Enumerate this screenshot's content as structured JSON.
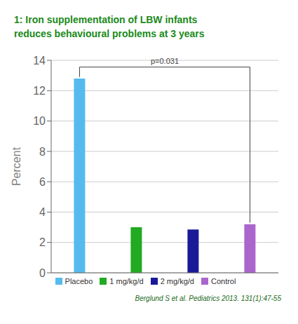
{
  "chart_data": {
    "type": "bar",
    "title": "1:  Iron supplementation of LBW infants",
    "subtitle": "reduces behavioural problems at 3 years",
    "categories": [
      "Placebo",
      "1 mg/kg/d",
      "2 mg/kg/d",
      "Control"
    ],
    "values": [
      12.8,
      3.0,
      2.85,
      3.2
    ],
    "colors": [
      "#55bbee",
      "#22aa22",
      "#1a1a99",
      "#aa66cc"
    ],
    "ylabel": "Percent",
    "ylim": [
      0,
      14
    ],
    "yticks": [
      0,
      2,
      4,
      6,
      8,
      10,
      12,
      14
    ],
    "grid": true,
    "legend": "bottom",
    "tick_labels": "y",
    "annotations": [
      "p=0.031",
      "Berglund S et al. Pediatrics 2013. 131(1):47-55"
    ]
  }
}
